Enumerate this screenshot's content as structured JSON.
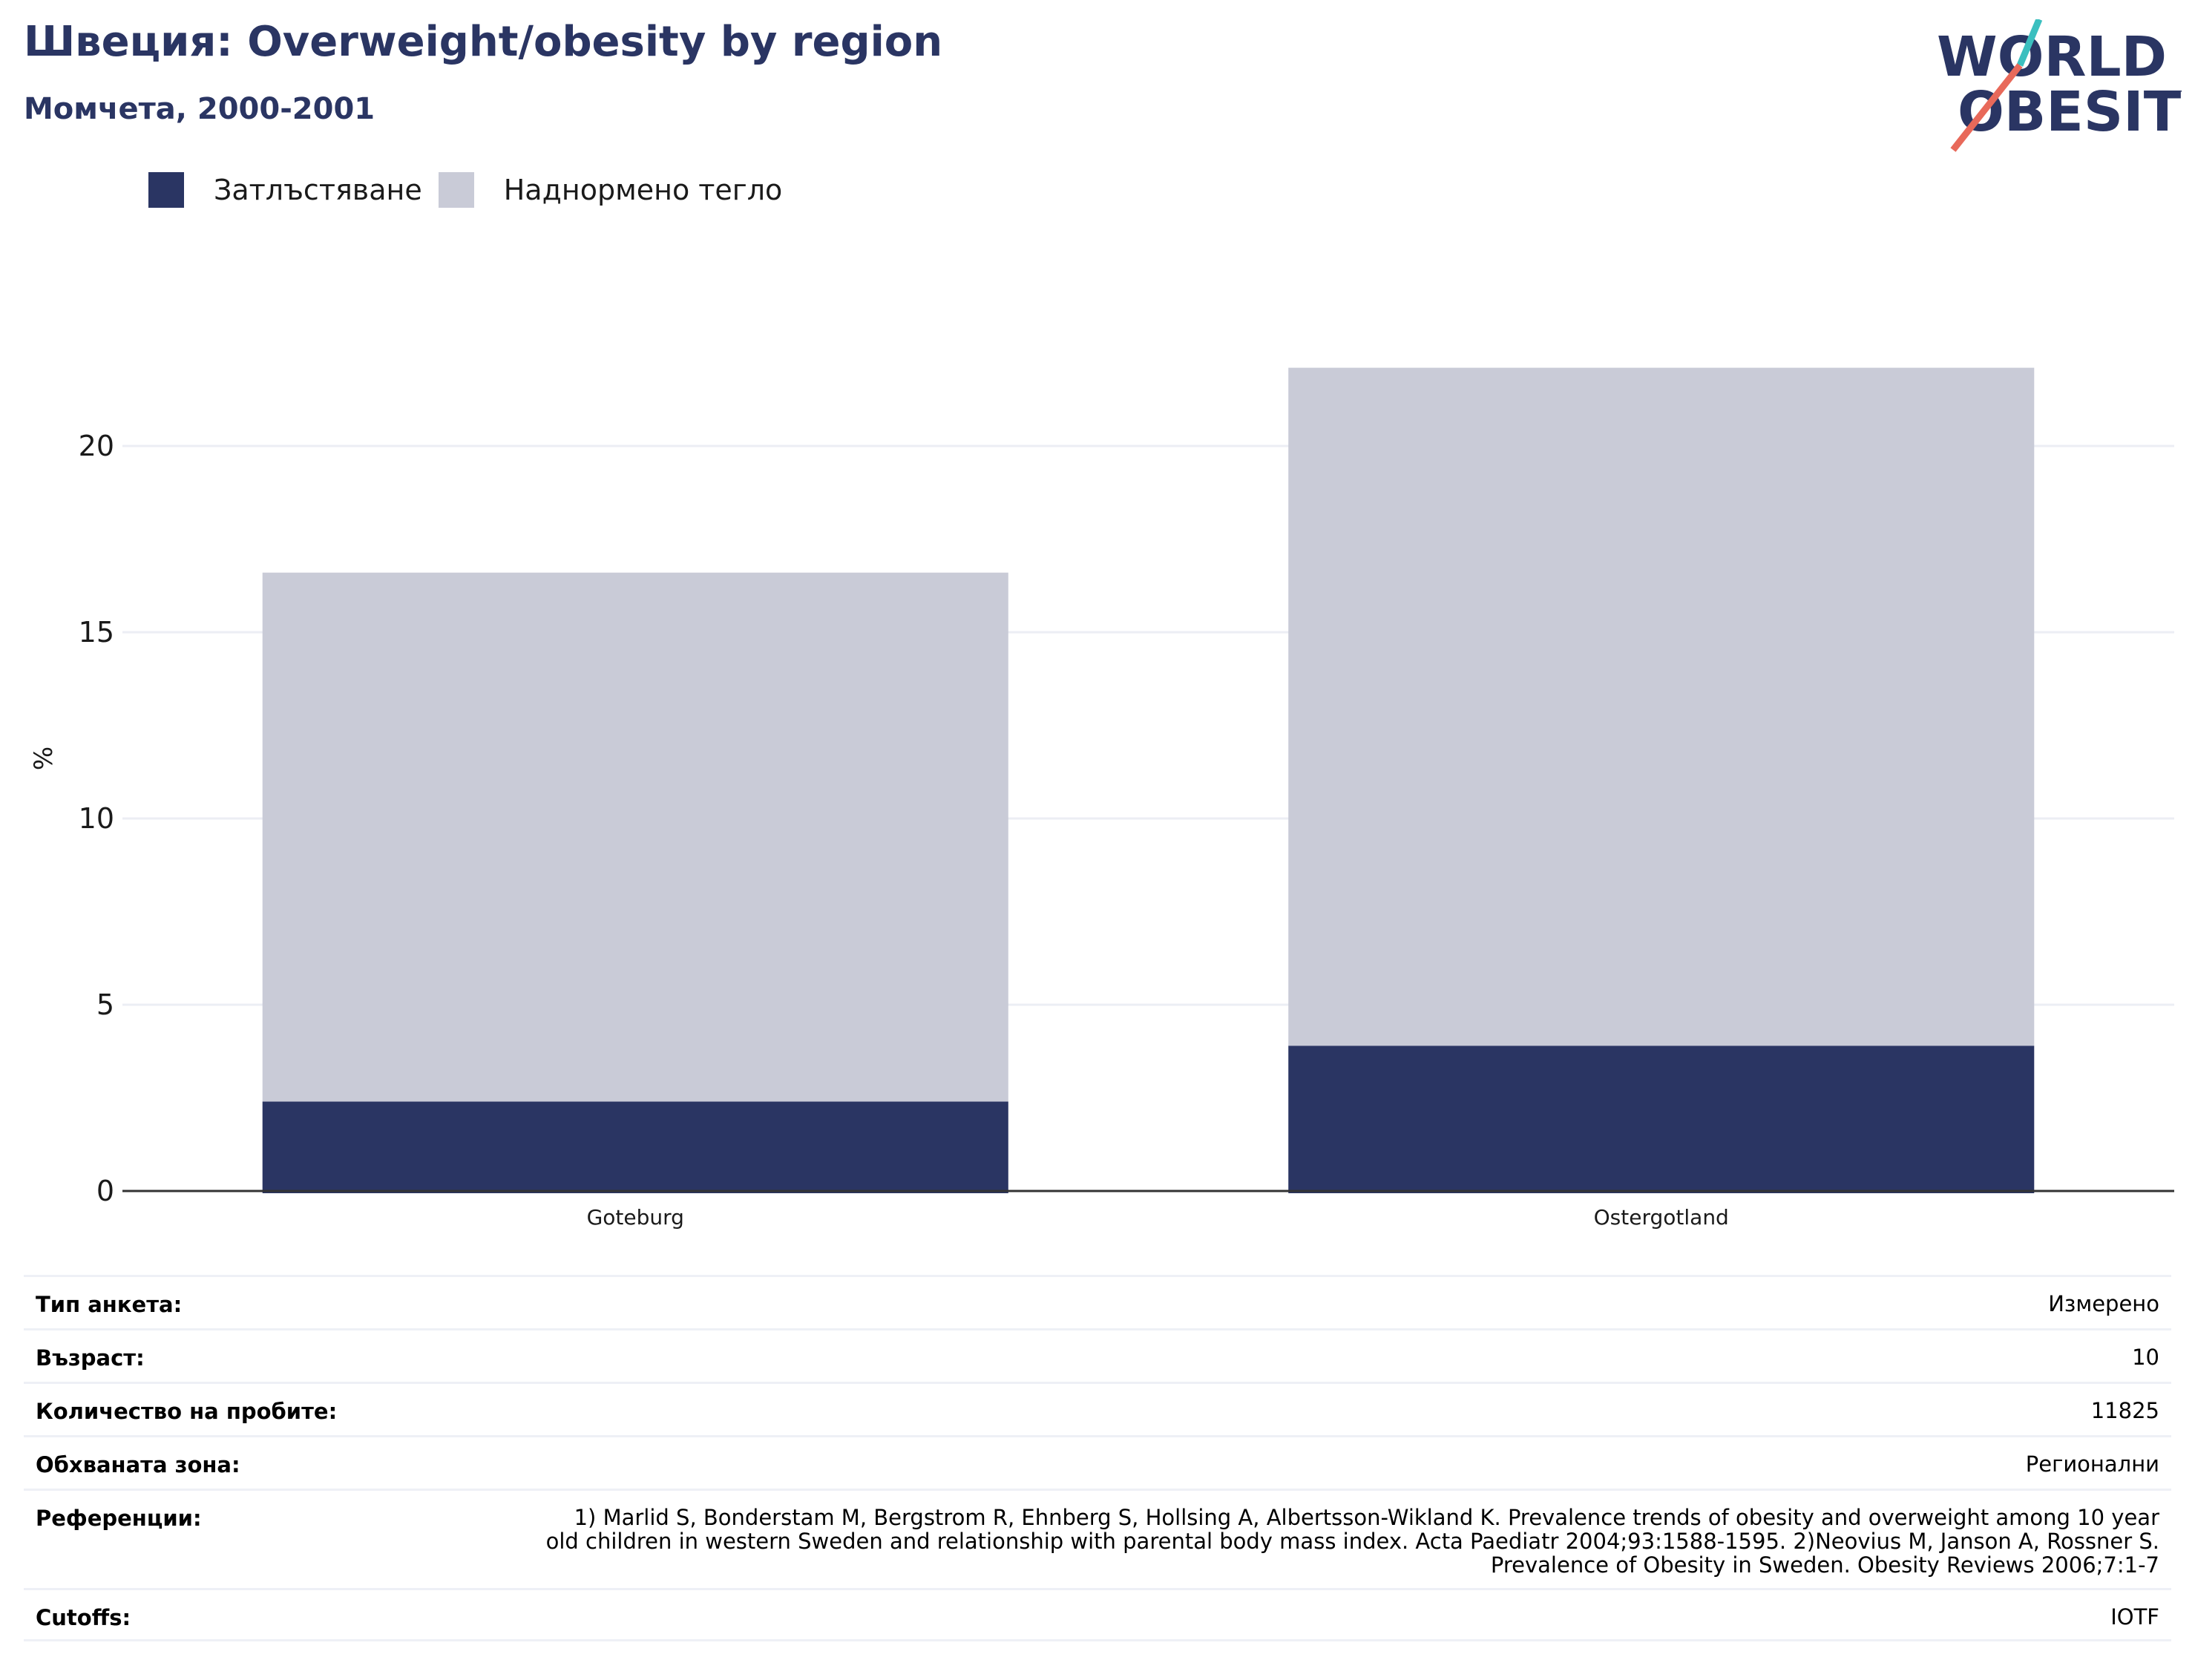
{
  "header": {
    "title": "Швеция: Overweight/obesity by region",
    "subtitle": "Момчета, 2000-2001"
  },
  "logo": {
    "line1": "WORLD",
    "line2": "OBESITY",
    "colors": {
      "text": "#2a3563",
      "slash_top": "#3bbfbf",
      "slash_bottom": "#e8695a"
    }
  },
  "colors": {
    "obesity": "#2a3563",
    "overweight": "#c9cbd7",
    "grid": "#eceef4",
    "axis": "#333333"
  },
  "chart_data": {
    "type": "bar",
    "stacked": true,
    "categories": [
      "Goteburg",
      "Ostergotland"
    ],
    "series": [
      {
        "name": "Затлъстяване",
        "values": [
          2.4,
          3.9
        ]
      },
      {
        "name": "Наднормено тегло",
        "values": [
          14.2,
          18.2
        ]
      }
    ],
    "ylabel": "%",
    "ylim": [
      0,
      23
    ],
    "yticks": [
      0,
      5,
      10,
      15,
      20
    ],
    "grid": true,
    "legend": "top-left"
  },
  "info": {
    "rows": [
      {
        "label": "Тип анкета:",
        "value": "Измерено"
      },
      {
        "label": "Възраст:",
        "value": "10"
      },
      {
        "label": "Количество на пробите:",
        "value": "11825"
      },
      {
        "label": "Обхваната зона:",
        "value": "Регионални"
      },
      {
        "label": "Референции:",
        "value": "1) Marlid S, Bonderstam M, Bergstrom R, Ehnberg S, Hollsing A, Albertsson-Wikland K. Prevalence trends of obesity and overweight among 10 year old children in western Sweden and relationship with parental body mass index. Acta Paediatr 2004;93:1588-1595. 2)Neovius M, Janson A, Rossner S. Prevalence of Obesity in Sweden. Obesity Reviews 2006;7:1-7"
      },
      {
        "label": "Cutoffs:",
        "value": "IOTF"
      }
    ]
  }
}
